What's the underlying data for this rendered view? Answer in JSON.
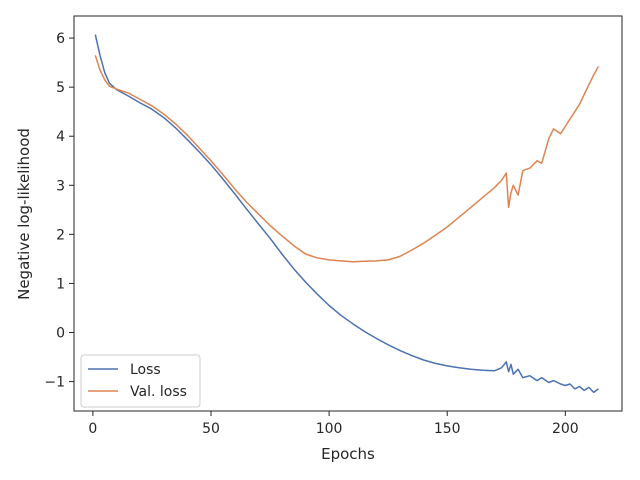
{
  "chart_data": {
    "type": "line",
    "title": "",
    "xlabel": "Epochs",
    "ylabel": "Negative log-likelihood",
    "xlim": [
      -8,
      224
    ],
    "ylim": [
      -1.6,
      6.45
    ],
    "xticks": [
      0,
      50,
      100,
      150,
      200
    ],
    "yticks": [
      6,
      5,
      4,
      3,
      2,
      1,
      0,
      -1
    ],
    "ytick_labels": [
      "6",
      "5",
      "4",
      "3",
      "2",
      "1",
      "0",
      "−1"
    ],
    "grid": false,
    "legend_position": "lower-left",
    "series": [
      {
        "name": "Loss",
        "color": "#4c72b0",
        "x": [
          1,
          3,
          5,
          7,
          10,
          15,
          20,
          25,
          30,
          35,
          40,
          45,
          50,
          55,
          60,
          65,
          70,
          75,
          80,
          85,
          90,
          95,
          100,
          105,
          110,
          115,
          120,
          125,
          130,
          135,
          140,
          145,
          150,
          155,
          160,
          165,
          170,
          173,
          175,
          176,
          177,
          178,
          180,
          182,
          185,
          188,
          190,
          193,
          195,
          198,
          200,
          202,
          204,
          206,
          208,
          210,
          212,
          214
        ],
        "y": [
          6.07,
          5.65,
          5.3,
          5.08,
          4.95,
          4.82,
          4.68,
          4.55,
          4.38,
          4.17,
          3.93,
          3.68,
          3.42,
          3.13,
          2.83,
          2.52,
          2.22,
          1.92,
          1.6,
          1.3,
          1.03,
          0.78,
          0.55,
          0.35,
          0.18,
          0.02,
          -0.12,
          -0.25,
          -0.37,
          -0.47,
          -0.56,
          -0.63,
          -0.68,
          -0.72,
          -0.75,
          -0.77,
          -0.78,
          -0.72,
          -0.6,
          -0.8,
          -0.65,
          -0.85,
          -0.75,
          -0.92,
          -0.88,
          -0.98,
          -0.92,
          -1.02,
          -0.98,
          -1.05,
          -1.08,
          -1.05,
          -1.15,
          -1.1,
          -1.18,
          -1.12,
          -1.22,
          -1.15
        ]
      },
      {
        "name": "Val. loss",
        "color": "#dd8452",
        "x": [
          1,
          3,
          5,
          7,
          10,
          15,
          20,
          25,
          30,
          35,
          40,
          45,
          50,
          55,
          60,
          65,
          70,
          75,
          80,
          85,
          90,
          95,
          100,
          105,
          110,
          115,
          120,
          125,
          130,
          135,
          140,
          145,
          150,
          155,
          160,
          165,
          170,
          173,
          175,
          176,
          177,
          178,
          180,
          182,
          185,
          188,
          190,
          193,
          195,
          198,
          200,
          202,
          204,
          206,
          208,
          210,
          212,
          214
        ],
        "y": [
          5.65,
          5.35,
          5.15,
          5.02,
          4.96,
          4.88,
          4.75,
          4.62,
          4.45,
          4.25,
          4.02,
          3.76,
          3.5,
          3.22,
          2.93,
          2.66,
          2.42,
          2.18,
          1.97,
          1.77,
          1.6,
          1.52,
          1.48,
          1.46,
          1.44,
          1.45,
          1.46,
          1.48,
          1.55,
          1.68,
          1.82,
          1.98,
          2.15,
          2.35,
          2.55,
          2.75,
          2.95,
          3.1,
          3.25,
          2.55,
          2.85,
          3.0,
          2.8,
          3.3,
          3.35,
          3.5,
          3.45,
          3.95,
          4.15,
          4.05,
          4.2,
          4.35,
          4.5,
          4.65,
          4.85,
          5.05,
          5.25,
          5.42
        ]
      }
    ]
  }
}
